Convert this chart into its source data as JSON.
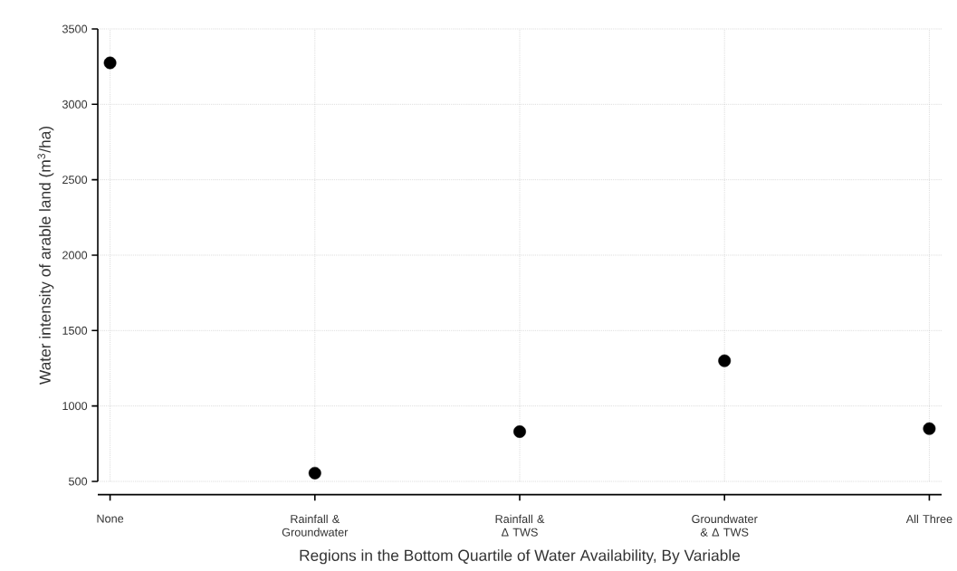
{
  "chart_data": {
    "type": "scatter",
    "xlabel": "Regions in the Bottom Quartile of Water Availability, By Variable",
    "ylabel": "Water intensity of arable land  (m$^{3}$/ha)",
    "categories": [
      "None",
      "Rainfall & Groundwater",
      "Rainfall & Δ TWS",
      "Groundwater & Δ TWS",
      "All Three"
    ],
    "values": [
      3275,
      555,
      830,
      1300,
      850
    ],
    "color": "#000000",
    "ylim": [
      500,
      3500
    ],
    "yticks": [
      500,
      1000,
      1500,
      2000,
      2500,
      3000,
      3500
    ],
    "grid": true
  }
}
